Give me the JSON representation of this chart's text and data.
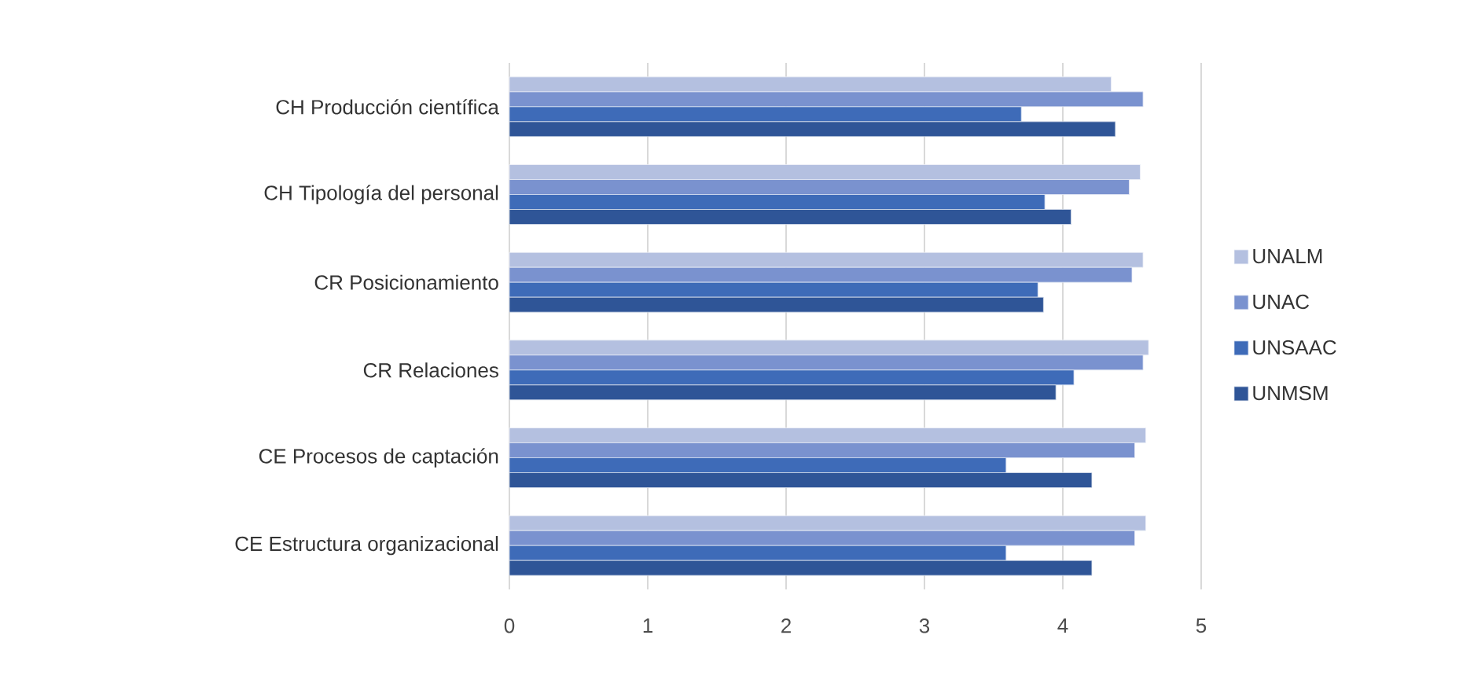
{
  "chart_data": {
    "type": "bar",
    "orientation": "horizontal",
    "categories": [
      "CH Producción científica",
      "CH Tipología del personal",
      "CR Posicionamiento",
      "CR Relaciones",
      "CE Procesos de captación",
      "CE Estructura organizacional"
    ],
    "series": [
      {
        "name": "UNALM",
        "color": "#b4c0e0",
        "values": [
          4.35,
          4.56,
          4.58,
          4.62,
          4.6,
          4.6
        ]
      },
      {
        "name": "UNAC",
        "color": "#7a92cf",
        "values": [
          4.58,
          4.48,
          4.5,
          4.58,
          4.52,
          4.52
        ]
      },
      {
        "name": "UNSAAC",
        "color": "#3e6bb8",
        "values": [
          3.7,
          3.87,
          3.82,
          4.08,
          3.59,
          3.59
        ]
      },
      {
        "name": "UNMSM",
        "color": "#2f5597",
        "values": [
          4.38,
          4.06,
          3.86,
          3.95,
          4.21,
          4.21
        ]
      }
    ],
    "xlim": [
      0,
      5
    ],
    "xticks": [
      0,
      1,
      2,
      3,
      4,
      5
    ],
    "grid": "x",
    "legend": "right"
  }
}
